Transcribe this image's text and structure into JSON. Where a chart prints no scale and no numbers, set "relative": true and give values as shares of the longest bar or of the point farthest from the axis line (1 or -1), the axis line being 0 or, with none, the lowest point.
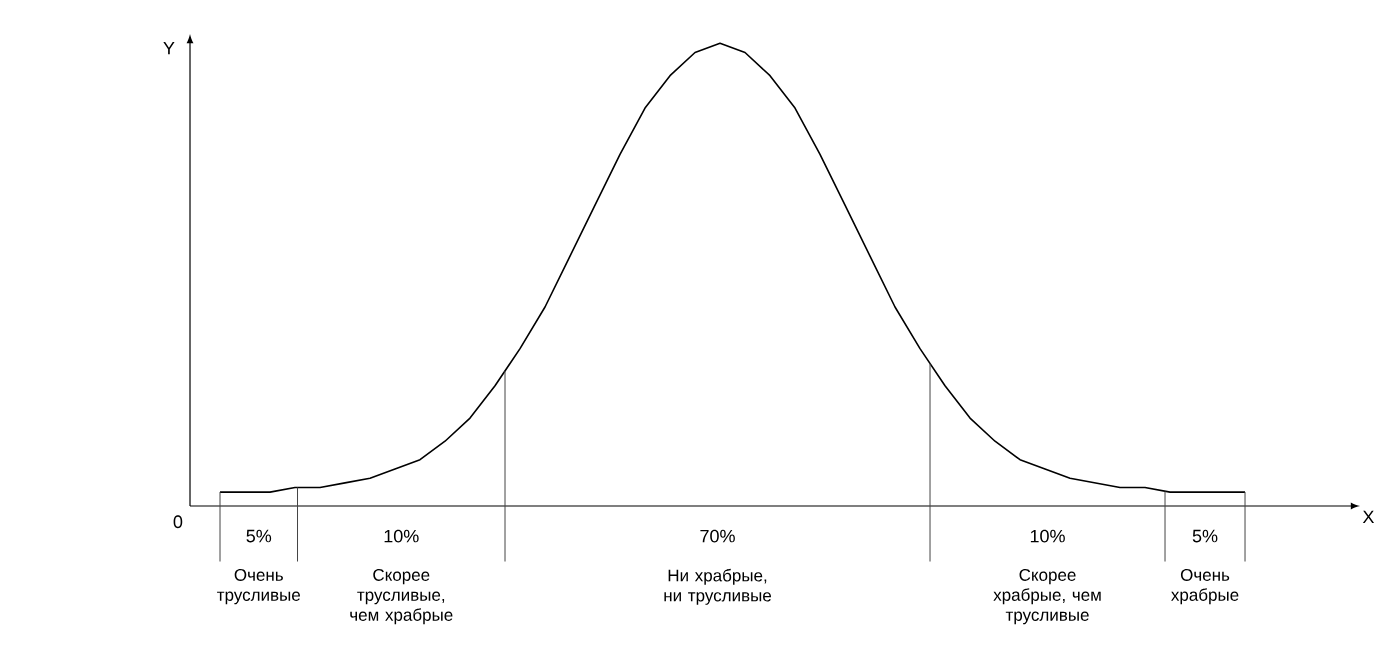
{
  "chart_data": {
    "type": "line",
    "relative": true,
    "ylabel": "Y",
    "categories": [
      null,
      null,
      null,
      null,
      null,
      null,
      null,
      null,
      null,
      null,
      null,
      null,
      null,
      null,
      null,
      null,
      null,
      null,
      null,
      null,
      null,
      null,
      null,
      null,
      null,
      null,
      null,
      null,
      null,
      null,
      null,
      null,
      null,
      null,
      null,
      null,
      null,
      null,
      null,
      null,
      null,
      null
    ],
    "series": [
      {
        "color": "#000000",
        "values": [
          0.03,
          0.03,
          0.03,
          0.04,
          0.04,
          0.05,
          0.06,
          0.08,
          0.1,
          0.14,
          0.19,
          0.26,
          0.34,
          0.43,
          0.54,
          0.65,
          0.76,
          0.86,
          0.93,
          0.98,
          1,
          0.98,
          0.93,
          0.86,
          0.76,
          0.65,
          0.54,
          0.43,
          0.34,
          0.26,
          0.19,
          0.14,
          0.1,
          0.08,
          0.06,
          0.05,
          0.04,
          0.04,
          0.03,
          0.03,
          0.03,
          0.03
        ]
      }
    ],
    "annotations": [
      "0",
      "5%",
      "Очень трусливые",
      "10%",
      "Скорее трусливые, чем храбрые",
      "70%",
      "Ни храбрые, ни трусливые",
      "10%",
      "Скорее храбрые, чем трусливые",
      "5%",
      "Очень храбрые",
      "X"
    ]
  }
}
